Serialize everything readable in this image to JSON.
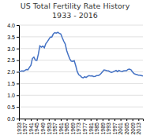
{
  "chart_data": {
    "type": "line",
    "title": "US Total Fertility Rate History",
    "subtitle": "1933 - 2016",
    "x": [
      1933,
      1934,
      1935,
      1936,
      1937,
      1938,
      1939,
      1940,
      1941,
      1942,
      1943,
      1944,
      1945,
      1946,
      1947,
      1948,
      1949,
      1950,
      1951,
      1952,
      1953,
      1954,
      1955,
      1956,
      1957,
      1958,
      1959,
      1960,
      1961,
      1962,
      1963,
      1964,
      1965,
      1966,
      1967,
      1968,
      1969,
      1970,
      1971,
      1972,
      1973,
      1974,
      1975,
      1976,
      1977,
      1978,
      1979,
      1980,
      1981,
      1982,
      1983,
      1984,
      1985,
      1986,
      1987,
      1988,
      1989,
      1990,
      1991,
      1992,
      1993,
      1994,
      1995,
      1996,
      1997,
      1998,
      1999,
      2000,
      2001,
      2002,
      2003,
      2004,
      2005,
      2006,
      2007,
      2008,
      2009,
      2010,
      2011,
      2012,
      2013,
      2014,
      2015,
      2016
    ],
    "values": [
      2.0,
      2.03,
      2.04,
      2.03,
      2.06,
      2.1,
      2.09,
      2.19,
      2.28,
      2.57,
      2.63,
      2.5,
      2.49,
      2.76,
      3.11,
      3.06,
      3.1,
      3.03,
      3.21,
      3.29,
      3.39,
      3.49,
      3.49,
      3.62,
      3.68,
      3.66,
      3.69,
      3.65,
      3.62,
      3.46,
      3.31,
      3.19,
      2.91,
      2.72,
      2.56,
      2.46,
      2.45,
      2.48,
      2.27,
      2.02,
      1.88,
      1.84,
      1.77,
      1.74,
      1.79,
      1.76,
      1.81,
      1.84,
      1.82,
      1.83,
      1.8,
      1.81,
      1.84,
      1.84,
      1.87,
      1.93,
      2.01,
      2.08,
      2.07,
      2.05,
      2.04,
      2.0,
      1.98,
      2.0,
      2.03,
      2.06,
      2.01,
      2.06,
      2.03,
      2.01,
      2.04,
      2.05,
      2.05,
      2.1,
      2.12,
      2.09,
      2.0,
      1.93,
      1.9,
      1.88,
      1.86,
      1.86,
      1.84,
      1.82
    ],
    "color": "#4472C4",
    "xlim": [
      1933,
      2016
    ],
    "xticks": [
      1933,
      1937,
      1941,
      1945,
      1949,
      1953,
      1957,
      1961,
      1965,
      1969,
      1973,
      1977,
      1981,
      1985,
      1989,
      1993,
      1997,
      2001,
      2005,
      2009,
      2013
    ],
    "ylim": [
      0.0,
      4.0
    ],
    "yticks": [
      {
        "value": 0.0,
        "label": "0.0"
      },
      0.5,
      {
        "value": 1.0,
        "label": "1.0"
      },
      1.5,
      {
        "value": 2.0,
        "label": "2.0"
      },
      2.5,
      {
        "value": 3.0,
        "label": "3.0"
      },
      3.5,
      {
        "value": 4.0,
        "label": "4.0"
      }
    ],
    "grid": true
  }
}
